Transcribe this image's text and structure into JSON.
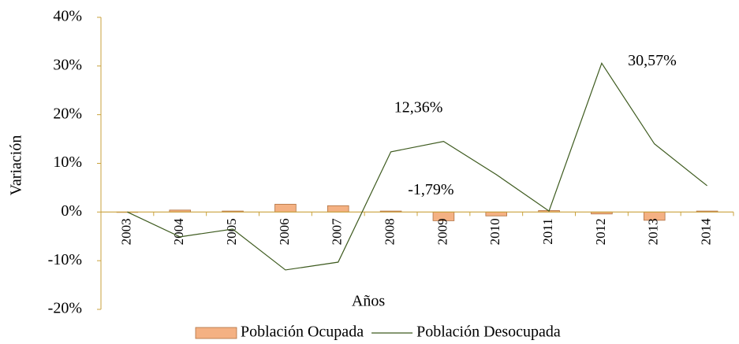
{
  "chart_data": {
    "type": "bar-line",
    "x_label": "Años",
    "y_label": "Variación",
    "categories": [
      "2003",
      "2004",
      "2005",
      "2006",
      "2007",
      "2008",
      "2009",
      "2010",
      "2011",
      "2012",
      "2013",
      "2014"
    ],
    "series": [
      {
        "name": "Población Ocupada",
        "type": "bar",
        "color": "#f4b183",
        "values": [
          0,
          0.4,
          0.2,
          1.6,
          1.3,
          0.2,
          -1.79,
          -0.8,
          0.3,
          -0.4,
          -1.7,
          0.2
        ],
        "value_labels": [
          null,
          null,
          null,
          null,
          null,
          null,
          "-1,79%",
          null,
          null,
          null,
          null,
          null
        ]
      },
      {
        "name": "Población Desocupada",
        "type": "line",
        "color": "#3d5a1e",
        "values": [
          0,
          -5.1,
          -3.5,
          -11.9,
          -10.3,
          12.36,
          14.5,
          7.7,
          0.2,
          30.57,
          14,
          5.4
        ],
        "value_labels": [
          null,
          null,
          null,
          null,
          null,
          "12,36%",
          null,
          null,
          null,
          "30,57%",
          null,
          null
        ]
      }
    ],
    "ylim": [
      -20,
      40
    ],
    "yticks": [
      {
        "value": -20,
        "label": "-20%"
      },
      {
        "value": -10,
        "label": "-10%"
      },
      {
        "value": 0,
        "label": "0%"
      },
      {
        "value": 10,
        "label": "10%"
      },
      {
        "value": 20,
        "label": "20%"
      },
      {
        "value": 30,
        "label": "30%"
      },
      {
        "value": 40,
        "label": "40%"
      }
    ],
    "legend": "bottom"
  }
}
